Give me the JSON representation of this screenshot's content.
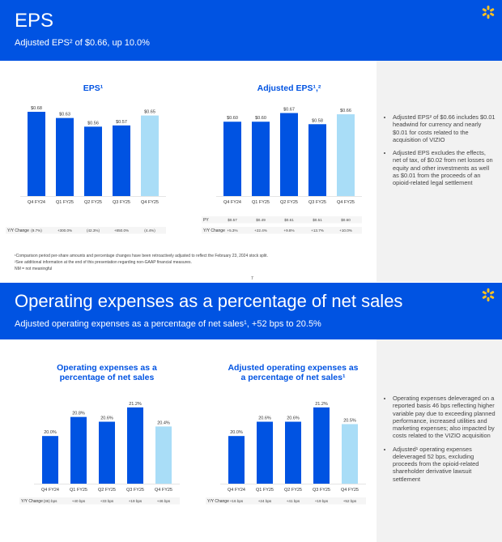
{
  "slide1": {
    "title": "EPS",
    "subtitle": "Adjusted EPS² of $0.66, up 10.0%",
    "bullets": [
      "Adjusted EPS² of $0.66 includes $0.01 headwind for currency and nearly $0.01 for costs related to the acquisition of VIZIO",
      "Adjusted EPS excludes the effects, net of tax, of $0.02 from net losses on equity and other investments as well as $0.01 from the proceeds of an opioid-related legal settlement"
    ],
    "footnotes": [
      "¹Comparison period per-share amounts and percentage changes have been retroactively adjusted to reflect the February 23, 2024 stock split.",
      "²See additional information at the end of this presentation regarding non-GAAP financial measures.",
      "NM = not meaningful"
    ],
    "page_number": "7"
  },
  "slide2": {
    "title": "Operating expenses as a percentage of net sales",
    "subtitle": "Adjusted operating expenses as a percentage of net sales¹, +52 bps to 20.5%",
    "bullets": [
      "Operating expenses deleveraged on a reported basis 46 bps reflecting higher variable pay due to exceeding planned performance, increased utilities and marketing expenses; also impacted by costs related to the VIZIO acquisition",
      "Adjusted¹ operating expenses deleveraged 52 bps, excluding proceeds from the opioid-related shareholder derivative lawsuit settlement"
    ]
  },
  "colors": {
    "banner": "#0053e2",
    "bar": "#0053e2",
    "bar_highlight": "#a9ddf7",
    "spark": "#ffc220"
  },
  "icons": {
    "logo": "walmart-spark-icon"
  },
  "chart_data": [
    {
      "type": "bar",
      "title": "EPS¹",
      "categories": [
        "Q4 FY24",
        "Q1 FY25",
        "Q2 FY25",
        "Q3 FY25",
        "Q4 FY25"
      ],
      "values": [
        0.68,
        0.63,
        0.56,
        0.57,
        0.65
      ],
      "labels": [
        "$0.68",
        "$0.63",
        "$0.56",
        "$0.57",
        "$0.65"
      ],
      "rows": [
        {
          "label": "Y/Y Change",
          "values": [
            "(9.7%)",
            "+300.0%",
            "(42.3%)",
            "+850.0%",
            "(4.4%)"
          ]
        }
      ],
      "ylim": [
        0,
        0.85
      ]
    },
    {
      "type": "bar",
      "title": "Adjusted EPS¹,²",
      "categories": [
        "Q4 FY24",
        "Q1 FY25",
        "Q2 FY25",
        "Q3 FY25",
        "Q4 FY25"
      ],
      "values": [
        0.6,
        0.6,
        0.67,
        0.58,
        0.66
      ],
      "labels": [
        "$0.60",
        "$0.60",
        "$0.67",
        "$0.58",
        "$0.66"
      ],
      "rows": [
        {
          "label": "PY",
          "values": [
            "$0.57",
            "$0.49",
            "$0.61",
            "$0.51",
            "$0.60"
          ]
        },
        {
          "label": "Y/Y Change",
          "values": [
            "+5.3%",
            "+22.4%",
            "+9.8%",
            "+13.7%",
            "+10.0%"
          ]
        }
      ],
      "ylim": [
        0,
        0.85
      ]
    },
    {
      "type": "bar",
      "title": "Operating expenses as a percentage of net sales",
      "categories": [
        "Q4 FY24",
        "Q1 FY25",
        "Q2 FY25",
        "Q3 FY25",
        "Q4 FY25"
      ],
      "values": [
        20.0,
        20.8,
        20.6,
        21.2,
        20.4
      ],
      "labels": [
        "20.0%",
        "20.8%",
        "20.6%",
        "21.2%",
        "20.4%"
      ],
      "rows": [
        {
          "label": "Y/Y Change",
          "values": [
            "(36) bps",
            "+40 bps",
            "+33 bps",
            "+19 bps",
            "+46 bps"
          ]
        }
      ],
      "ylim": [
        18.0,
        21.4
      ]
    },
    {
      "type": "bar",
      "title": "Adjusted operating expenses as a percentage of net sales¹",
      "categories": [
        "Q4 FY24",
        "Q1 FY25",
        "Q2 FY25",
        "Q3 FY25",
        "Q4 FY25"
      ],
      "values": [
        20.0,
        20.6,
        20.6,
        21.2,
        20.5
      ],
      "labels": [
        "20.0%",
        "20.6%",
        "20.6%",
        "21.2%",
        "20.5%"
      ],
      "rows": [
        {
          "label": "Y/Y Change",
          "values": [
            "+16 bps",
            "+24 bps",
            "+41 bps",
            "+19 bps",
            "+52 bps"
          ]
        }
      ],
      "ylim": [
        18.0,
        21.4
      ]
    }
  ]
}
